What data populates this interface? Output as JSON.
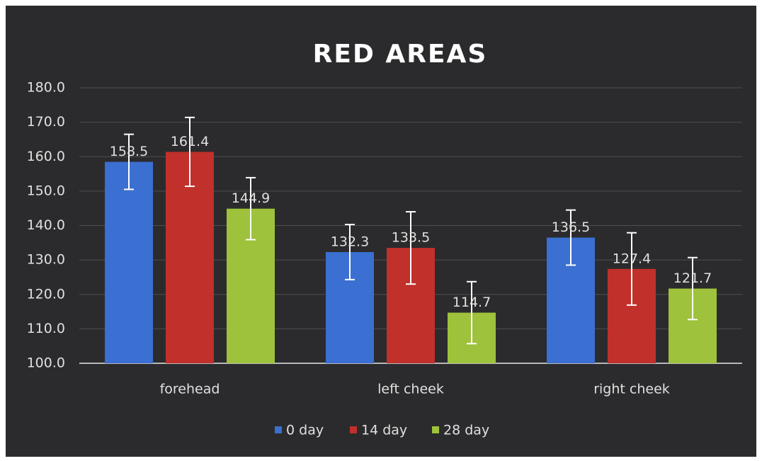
{
  "chart_data": {
    "type": "bar",
    "title": "RED AREAS",
    "categories": [
      "forehead",
      "left cheek",
      "right cheek"
    ],
    "series": [
      {
        "name": "0 day",
        "color": "#3b6fd1",
        "values": [
          158.5,
          132.3,
          136.5
        ],
        "errors": [
          8,
          8,
          8
        ]
      },
      {
        "name": "14 day",
        "color": "#c1302b",
        "values": [
          161.4,
          133.5,
          127.4
        ],
        "errors": [
          10,
          10.5,
          10.5
        ]
      },
      {
        "name": "28 day",
        "color": "#9ec23b",
        "values": [
          144.9,
          114.7,
          121.7
        ],
        "errors": [
          9,
          9,
          9
        ]
      }
    ],
    "ylim": [
      100,
      180
    ],
    "yticks": [
      {
        "value": 100,
        "label": "100.0"
      },
      {
        "value": 110,
        "label": "110.0"
      },
      {
        "value": 120,
        "label": "120.0"
      },
      {
        "value": 130,
        "label": "130.0"
      },
      {
        "value": 140,
        "label": "140.0"
      },
      {
        "value": 150,
        "label": "150.0"
      },
      {
        "value": 160,
        "label": "160.0"
      },
      {
        "value": 170,
        "label": "170.0"
      },
      {
        "value": 180,
        "label": "180.0"
      }
    ],
    "grid": true,
    "legend": "bottom"
  }
}
